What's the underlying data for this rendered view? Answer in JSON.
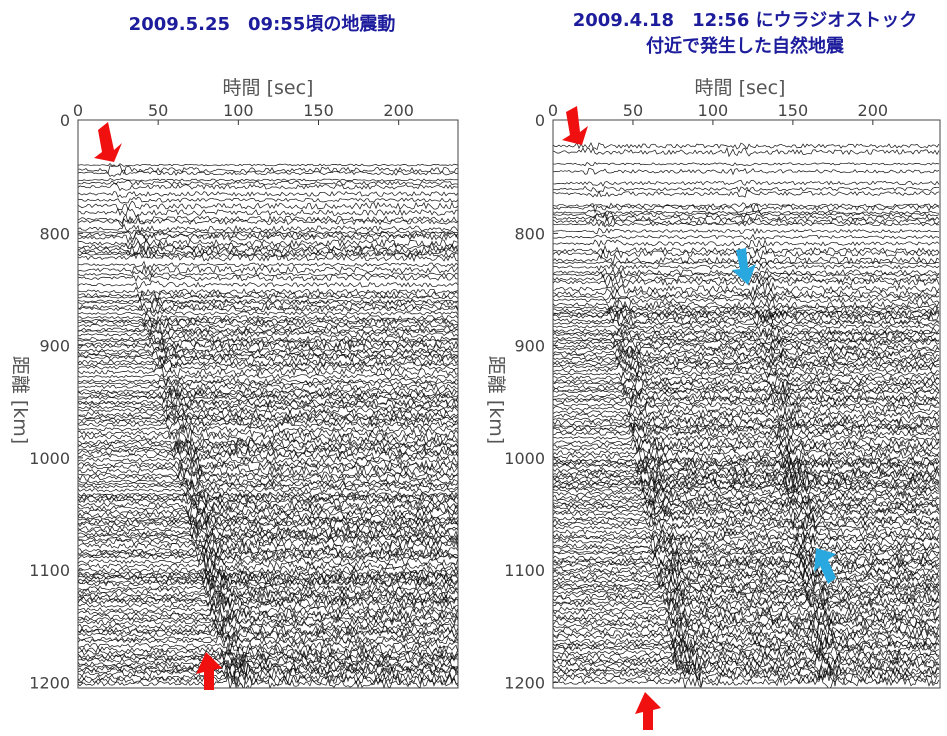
{
  "panels": [
    {
      "title": [
        "2009.5.25　09:55頃の地震動"
      ],
      "xlabel": "時間 [sec]",
      "ylabel": "距離 [km]",
      "y_top": 0,
      "xlim": [
        0,
        237
      ],
      "xticks": [
        0,
        50,
        100,
        150,
        200
      ],
      "ylim": [
        699,
        1205
      ],
      "yticks": [
        800,
        900,
        1000,
        1100,
        1200
      ]
    },
    {
      "title": [
        "2009.4.18　12:56 にウラジオストック",
        "付近で発生した自然地震"
      ],
      "xlabel": "時間 [sec]",
      "ylabel": "距離 [km]",
      "y_top": 0,
      "xlim": [
        0,
        242
      ],
      "xticks": [
        0,
        50,
        100,
        150,
        200
      ],
      "ylim": [
        699,
        1205
      ],
      "yticks": [
        800,
        900,
        1000,
        1100,
        1200
      ]
    }
  ]
}
